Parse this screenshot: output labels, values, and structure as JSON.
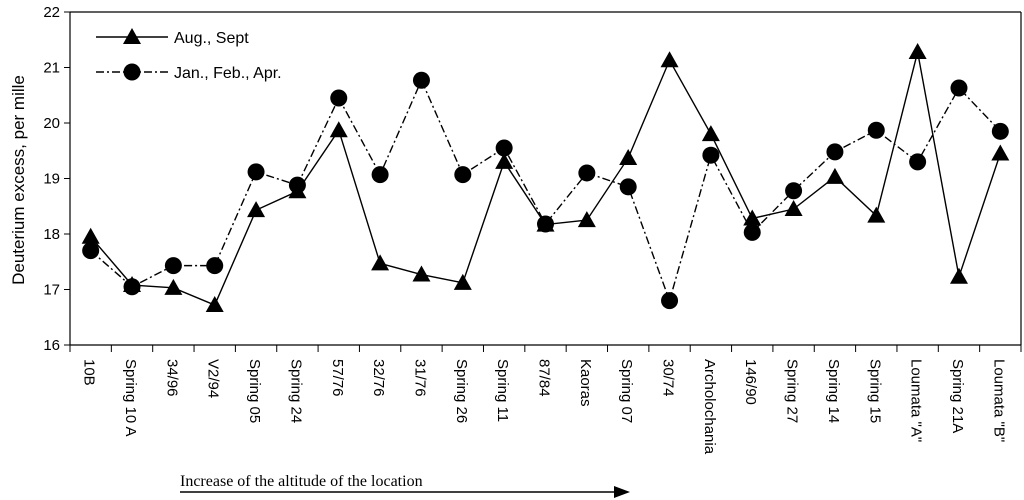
{
  "chart_data": {
    "type": "line",
    "ylabel": "Deuterium excess, per mille",
    "ylim": [
      16,
      22
    ],
    "yticks": [
      16,
      17,
      18,
      19,
      20,
      21,
      22
    ],
    "categories": [
      "10B",
      "Spring 10 A",
      "34/96",
      "V2/94",
      "Spring 05",
      "Spring 24",
      "57/76",
      "32/76",
      "31/76",
      "Spring 26",
      "Spring 11",
      "87/84",
      "Kaoras",
      "Spring 07",
      "30/74",
      "Archolochania",
      "146/90",
      "Spring 27",
      "Spring 14",
      "Spring 15",
      "Loumata \"A\"",
      "Spring 21A",
      "Loumata \"B\""
    ],
    "series": [
      {
        "name": "Aug., Sept",
        "marker": "triangle-icon",
        "line_style": "solid",
        "values": [
          17.95,
          17.08,
          17.03,
          16.72,
          18.43,
          18.77,
          19.87,
          17.47,
          17.27,
          17.12,
          19.3,
          18.17,
          18.25,
          19.37,
          21.13,
          19.8,
          18.28,
          18.45,
          19.03,
          18.33,
          21.28,
          17.23,
          19.45
        ]
      },
      {
        "name": "Jan., Feb., Apr.",
        "marker": "circle-icon",
        "line_style": "dash-dot",
        "values": [
          17.7,
          17.05,
          17.43,
          17.43,
          19.12,
          18.88,
          20.45,
          19.07,
          20.77,
          19.07,
          19.55,
          18.18,
          19.1,
          18.85,
          16.8,
          19.42,
          18.03,
          18.78,
          19.48,
          19.87,
          19.3,
          20.63,
          19.85
        ]
      }
    ],
    "annotation": {
      "text": "Increase of the altitude of the location",
      "arrow": "right"
    },
    "grid": false,
    "legend_placement": "top-left"
  }
}
